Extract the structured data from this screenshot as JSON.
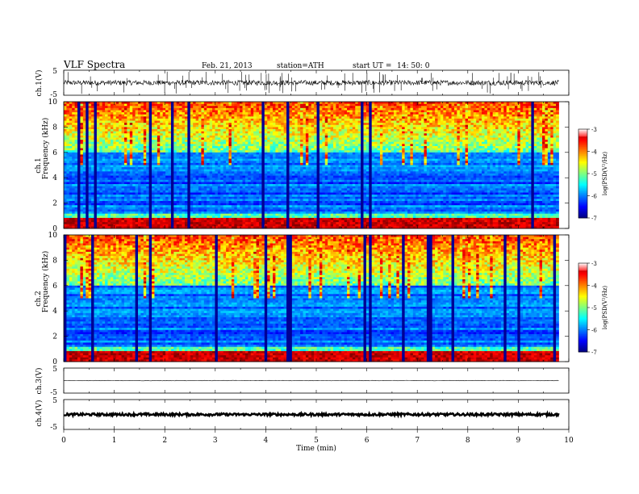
{
  "header": {
    "title": "VLF Spectra",
    "date": "Feb. 21, 2013",
    "station": "station=ATH",
    "start": "start UT =",
    "start_time": "14: 50: 0"
  },
  "chart_data": [
    {
      "id": "ch1-waveform",
      "type": "line",
      "ylabel": "ch.1(V)",
      "ylim": [
        -5,
        5
      ],
      "yticks": [
        -5,
        5
      ],
      "xlim": [
        0,
        10
      ],
      "baseline": 0,
      "noise_amplitude": 1.0,
      "spike_amplitude": 4.5
    },
    {
      "id": "ch1-spectrogram",
      "type": "heatmap",
      "ylabel": "Frequency (kHz)",
      "channel_label": "ch.1",
      "ylim": [
        0,
        10
      ],
      "yticks": [
        0,
        2,
        4,
        6,
        8,
        10
      ],
      "xlim": [
        0,
        10
      ],
      "data_end_min": 9.8,
      "colorbar": {
        "label": "log(PSD(V²/Hz)",
        "min": -7,
        "max": -3,
        "ticks": [
          "-3",
          "-4",
          "-5",
          "-6",
          "-7"
        ]
      }
    },
    {
      "id": "ch2-spectrogram",
      "type": "heatmap",
      "ylabel": "Frequency (kHz)",
      "channel_label": "ch.2",
      "ylim": [
        0,
        10
      ],
      "yticks": [
        0,
        2,
        4,
        6,
        8,
        10
      ],
      "xlim": [
        0,
        10
      ],
      "data_end_min": 9.8,
      "colorbar": {
        "label": "log(PSD(V²/Hz)",
        "min": -7,
        "max": -3,
        "ticks": [
          "-3",
          "-4",
          "-5",
          "-6",
          "-7"
        ]
      }
    },
    {
      "id": "ch3-waveform",
      "type": "line",
      "ylabel": "ch.3(V)",
      "ylim": [
        -5,
        5
      ],
      "yticks": [
        -5,
        5
      ],
      "xlim": [
        0,
        10
      ],
      "baseline": 0,
      "noise_amplitude": 0.1
    },
    {
      "id": "ch4-waveform",
      "type": "line",
      "ylabel": "ch.4(V)",
      "ylim": [
        -5,
        5
      ],
      "yticks": [
        -5,
        5
      ],
      "xlim": [
        0,
        10
      ],
      "baseline": 0,
      "noise_amplitude": 0.4
    }
  ],
  "xaxis": {
    "label": "Time (min)",
    "ticks": [
      "0",
      "1",
      "2",
      "3",
      "4",
      "5",
      "6",
      "7",
      "8",
      "9",
      "10"
    ]
  }
}
